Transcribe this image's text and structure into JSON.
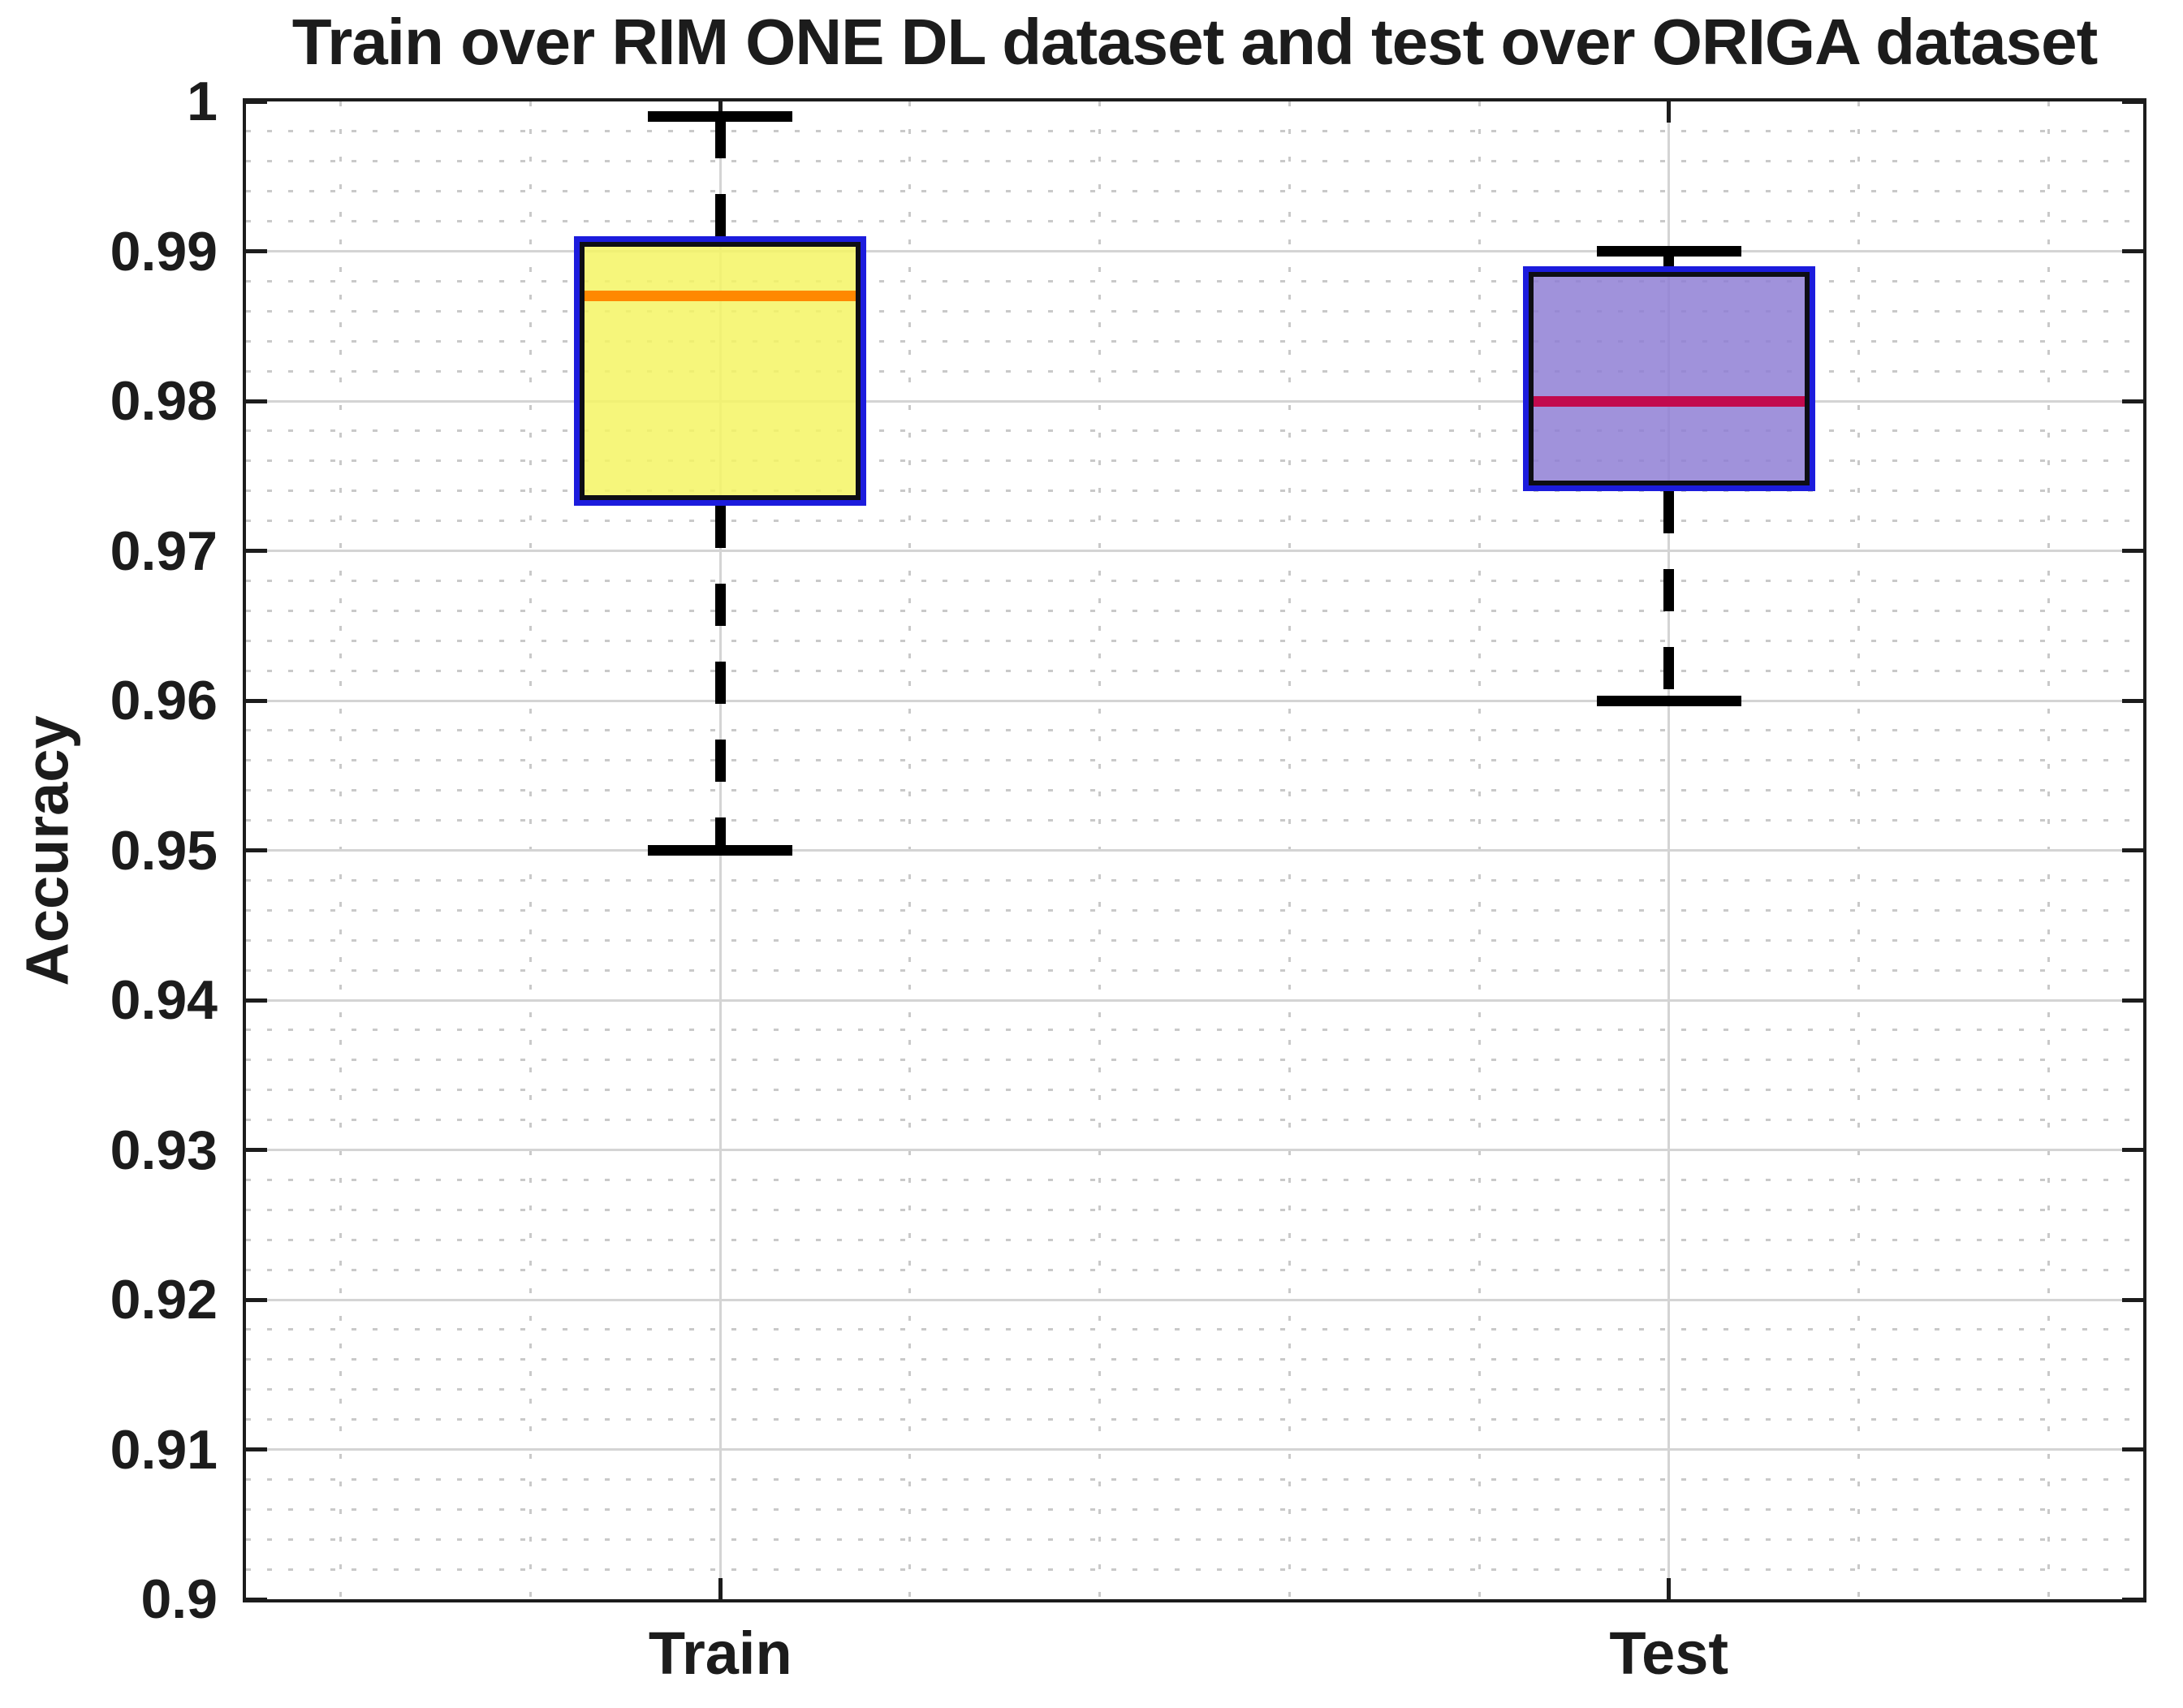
{
  "chart_data": {
    "type": "box",
    "title": "Train over RIM ONE DL dataset and test over ORIGA dataset",
    "xlabel": "",
    "ylabel": "Accuracy",
    "ylim": [
      0.9,
      1.0
    ],
    "ytick_labels": [
      "1",
      "0.99",
      "0.98",
      "0.97",
      "0.96",
      "0.95",
      "0.94",
      "0.93",
      "0.92",
      "0.91",
      "0.9"
    ],
    "categories": [
      "Train",
      "Test"
    ],
    "series": [
      {
        "name": "Train",
        "x": 1,
        "whisker_low": 0.95,
        "q1": 0.973,
        "median": 0.987,
        "q3": 0.991,
        "whisker_high": 0.999,
        "fill_color": "#f5f564",
        "median_color": "#ff8800"
      },
      {
        "name": "Test",
        "x": 2,
        "whisker_low": 0.96,
        "q1": 0.974,
        "median": 0.98,
        "q3": 0.989,
        "whisker_high": 0.99,
        "fill_color": "#8f7fd5",
        "median_color": "#c20a4e"
      }
    ],
    "layout": {
      "xlim": [
        0.5,
        2.5
      ],
      "grid": "major-and-minor",
      "minor_y_step": 0.002,
      "minor_x_positions": [
        0.6,
        0.8,
        1.2,
        1.4,
        1.6,
        1.8,
        2.2,
        2.4
      ],
      "legend": "none"
    },
    "colors": {
      "box_border_outer": "#1c1cdd",
      "box_border_inner": "#0e0e14",
      "whisker": "#000000",
      "grid_major": "#d4d4d4",
      "grid_minor": "#c9c9c9",
      "axis": "#1c1c1c",
      "text": "#1c1c1c",
      "background": "#ffffff"
    }
  }
}
